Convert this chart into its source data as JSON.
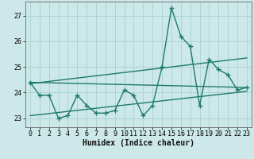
{
  "title": "",
  "xlabel": "Humidex (Indice chaleur)",
  "ylabel": "",
  "bg_color": "#cce8e8",
  "grid_color": "#aed4d4",
  "line_color": "#1e7a6e",
  "xlim": [
    -0.5,
    23.5
  ],
  "ylim": [
    22.65,
    27.55
  ],
  "xticks": [
    0,
    1,
    2,
    3,
    4,
    5,
    6,
    7,
    8,
    9,
    10,
    11,
    12,
    13,
    14,
    15,
    16,
    17,
    18,
    19,
    20,
    21,
    22,
    23
  ],
  "yticks": [
    23,
    24,
    25,
    26,
    27
  ],
  "series_main": {
    "x": [
      0,
      1,
      2,
      3,
      4,
      5,
      6,
      7,
      8,
      9,
      10,
      11,
      12,
      13,
      14,
      15,
      16,
      17,
      18,
      19,
      20,
      21,
      22,
      23
    ],
    "y": [
      24.4,
      23.9,
      23.9,
      23.0,
      23.1,
      23.9,
      23.5,
      23.2,
      23.2,
      23.3,
      24.1,
      23.9,
      23.1,
      23.5,
      25.0,
      27.3,
      26.2,
      25.8,
      23.5,
      25.3,
      24.9,
      24.7,
      24.1,
      24.2
    ]
  },
  "series_lines": [
    {
      "x": [
        0,
        23
      ],
      "y": [
        24.4,
        24.2
      ]
    },
    {
      "x": [
        0,
        23
      ],
      "y": [
        23.1,
        24.05
      ]
    },
    {
      "x": [
        0,
        23
      ],
      "y": [
        24.35,
        25.35
      ]
    }
  ],
  "xlabel_fontsize": 7,
  "tick_fontsize": 6,
  "ylabel_fontsize": 6,
  "line_width": 1.0,
  "marker": "+",
  "marker_size": 4
}
